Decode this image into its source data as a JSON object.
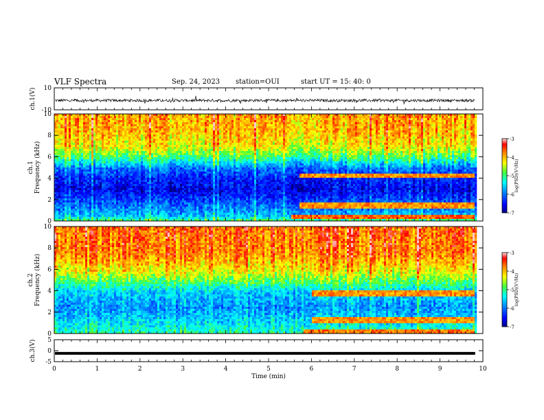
{
  "header": {
    "title": "VLF Spectra",
    "date": "Sep. 24, 2023",
    "station": "station=OUI",
    "start_ut": "start UT = 15: 40: 0"
  },
  "chart_data": [
    {
      "type": "line",
      "id": "ch1-waveform",
      "ylabel": "ch.1(V)",
      "ylim": [
        -10,
        10
      ],
      "yticks": [
        "10",
        "-10"
      ],
      "xlim": [
        0,
        10
      ],
      "series": [
        {
          "baseline": -1.5,
          "noise_amplitude": 2.5,
          "x_end": 9.82
        }
      ]
    },
    {
      "type": "heatmap",
      "id": "ch1-spectrogram",
      "ylabel": "ch.1\nFrequency (kHz)",
      "ylabel_lines": [
        "ch.1",
        "Frequency (kHz)"
      ],
      "ylim": [
        0,
        10
      ],
      "yticks": [
        "0",
        "2",
        "4",
        "6",
        "8",
        "10"
      ],
      "xlim": [
        0,
        9.82
      ],
      "colorbar": {
        "label": "log(PSD)(V²/Hz)",
        "range": [
          -7,
          -3
        ],
        "ticks": [
          "-3",
          "-4",
          "-5",
          "-6",
          "-7"
        ],
        "colors": [
          "#000080",
          "#0000ff",
          "#00a0ff",
          "#00ffff",
          "#40ff40",
          "#ffff00",
          "#ff8000",
          "#ff0000",
          "#ffffff"
        ]
      },
      "intensity_profile_log_psd": [
        {
          "freq_khz": 0.0,
          "log_psd": -4.6
        },
        {
          "freq_khz": 0.5,
          "log_psd": -5.6
        },
        {
          "freq_khz": 1.5,
          "log_psd": -6.0
        },
        {
          "freq_khz": 3.0,
          "log_psd": -6.6
        },
        {
          "freq_khz": 4.0,
          "log_psd": -6.4
        },
        {
          "freq_khz": 5.0,
          "log_psd": -6.0
        },
        {
          "freq_khz": 6.0,
          "log_psd": -5.0
        },
        {
          "freq_khz": 7.0,
          "log_psd": -4.3
        },
        {
          "freq_khz": 8.5,
          "log_psd": -4.0
        },
        {
          "freq_khz": 10.0,
          "log_psd": -3.9
        }
      ],
      "emission_bands": [
        {
          "t_start_min": 5.7,
          "t_end_min": 9.8,
          "freq_khz": 4.3,
          "log_psd": -3.8
        },
        {
          "t_start_min": 5.7,
          "t_end_min": 9.8,
          "freq_khz": 1.5,
          "log_psd": -3.8
        },
        {
          "t_start_min": 5.5,
          "t_end_min": 9.8,
          "freq_khz": 0.5,
          "log_psd": -3.6
        }
      ]
    },
    {
      "type": "heatmap",
      "id": "ch2-spectrogram",
      "ylabel": "ch.2\nFrequency (kHz)",
      "ylabel_lines": [
        "ch.2",
        "Frequency (kHz)"
      ],
      "ylim": [
        0,
        10
      ],
      "yticks": [
        "0",
        "2",
        "4",
        "6",
        "8",
        "10"
      ],
      "xlim": [
        0,
        9.82
      ],
      "colorbar": {
        "label": "log(PSD)(V²/Hz)",
        "range": [
          -7,
          -3
        ],
        "ticks": [
          "-3",
          "-4",
          "-5",
          "-6",
          "-7"
        ],
        "colors": [
          "#000080",
          "#0000ff",
          "#00a0ff",
          "#00ffff",
          "#40ff40",
          "#ffff00",
          "#ff8000",
          "#ff0000",
          "#ffffff"
        ]
      },
      "intensity_profile_log_psd": [
        {
          "freq_khz": 0.0,
          "log_psd": -5.0
        },
        {
          "freq_khz": 1.0,
          "log_psd": -5.4
        },
        {
          "freq_khz": 2.5,
          "log_psd": -5.8
        },
        {
          "freq_khz": 4.0,
          "log_psd": -5.5
        },
        {
          "freq_khz": 5.0,
          "log_psd": -4.8
        },
        {
          "freq_khz": 6.0,
          "log_psd": -4.2
        },
        {
          "freq_khz": 7.5,
          "log_psd": -3.7
        },
        {
          "freq_khz": 10.0,
          "log_psd": -3.6
        }
      ],
      "emission_bands": [
        {
          "t_start_min": 6.0,
          "t_end_min": 9.8,
          "freq_khz": 3.8,
          "log_psd": -3.8
        },
        {
          "t_start_min": 6.0,
          "t_end_min": 9.8,
          "freq_khz": 1.3,
          "log_psd": -3.8
        },
        {
          "t_start_min": 5.8,
          "t_end_min": 9.8,
          "freq_khz": 0.3,
          "log_psd": -3.7
        }
      ]
    },
    {
      "type": "line",
      "id": "ch3-waveform",
      "ylabel": "ch.3(V)",
      "ylim": [
        -5,
        5
      ],
      "yticks": [
        "5",
        "0",
        "-5"
      ],
      "xlim": [
        0,
        10
      ],
      "xlabel": "Time (min)",
      "xticks": [
        "0",
        "1",
        "2",
        "3",
        "4",
        "5",
        "6",
        "7",
        "8",
        "9",
        "10"
      ],
      "series": [
        {
          "baseline": -1.2,
          "x_end": 9.82
        }
      ]
    }
  ]
}
